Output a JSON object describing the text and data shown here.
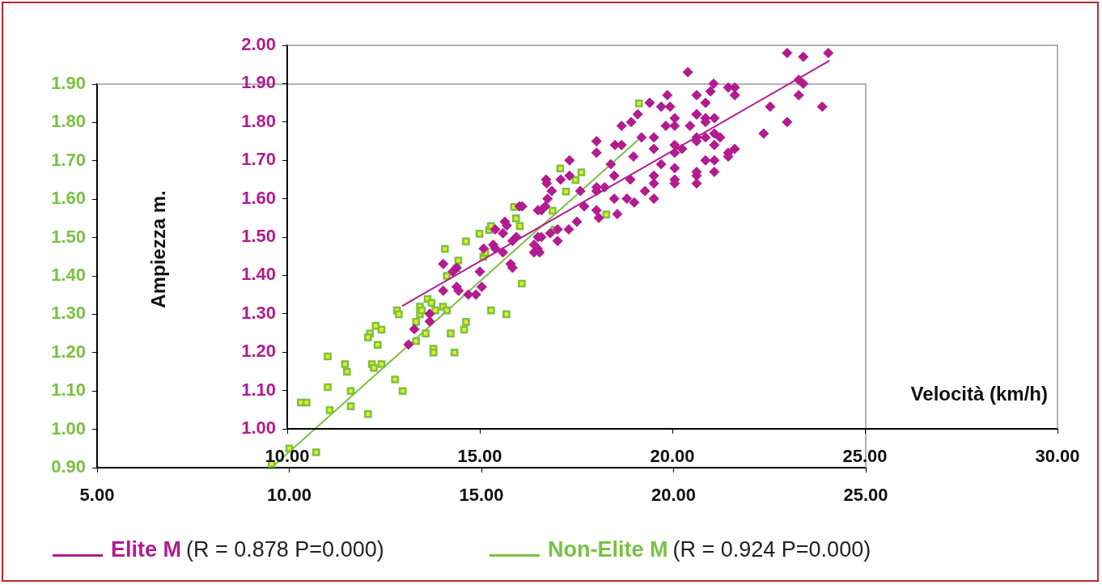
{
  "chart_data": [
    {
      "type": "scatter",
      "xlabel": "Velocità (km/h)",
      "ylabel": "Ampiezza m.",
      "legend": "bottom",
      "grid": false,
      "xlim": [
        10,
        30
      ],
      "xticks": [
        {
          "value": 10,
          "label": "10.00"
        },
        {
          "value": 15,
          "label": "15.00"
        },
        {
          "value": 20,
          "label": "20.00"
        },
        {
          "value": 25,
          "label": "25.00"
        },
        {
          "value": 30,
          "label": "30.00"
        }
      ],
      "ylim": [
        1,
        2
      ],
      "yticks": [
        {
          "value": 1,
          "label": "1.00"
        },
        {
          "value": 1.1,
          "label": "1.10"
        },
        {
          "value": 1.2,
          "label": "1.20"
        },
        {
          "value": 1.3,
          "label": "1.30"
        },
        {
          "value": 1.4,
          "label": "1.40"
        },
        {
          "value": 1.5,
          "label": "1.50"
        },
        {
          "value": 1.6,
          "label": "1.60"
        },
        {
          "value": 1.7,
          "label": "1.70"
        },
        {
          "value": 1.8,
          "label": "1.80"
        },
        {
          "value": 1.9,
          "label": "1.90"
        },
        {
          "value": 2,
          "label": "2.00"
        }
      ],
      "annotations": [
        "(R = 0.878 P=0.000)"
      ],
      "series": [
        {
          "name": "Elite M",
          "color": "#b31b8f",
          "marker": "diamond",
          "x": [
            13.15,
            13.3,
            13.7,
            13.7,
            14.05,
            14.05,
            14.3,
            14.4,
            14.4,
            14.45,
            14.7,
            14.9,
            15.0,
            15.05,
            15.1,
            15.4,
            15.6,
            15.6,
            15.8,
            15.85,
            15.85,
            15.65,
            15.7,
            15.95,
            16.1,
            16.5,
            16.55,
            16.6,
            16.6,
            16.7,
            15.4,
            15.35,
            16.03,
            16.51,
            16.76,
            16.72,
            16.74,
            16.87,
            17.1,
            17.33,
            17.33,
            16.51,
            16.41,
            16.41,
            16.83,
            17.02,
            17.02,
            17.31,
            17.52,
            17.61,
            17.71,
            18.03,
            18.03,
            18.03,
            18.03,
            18.03,
            18.09,
            18.24,
            18.4,
            18.49,
            18.49,
            18.51,
            18.57,
            18.68,
            18.68,
            18.82,
            18.91,
            18.93,
            18.99,
            19.01,
            19.1,
            19.2,
            19.29,
            19.41,
            19.52,
            19.52,
            19.52,
            19.52,
            19.52,
            19.71,
            19.71,
            19.83,
            19.87,
            19.94,
            20.06,
            20.06,
            20.06,
            20.06,
            20.06,
            20.06,
            20.06,
            20.25,
            20.46,
            20.63,
            20.63,
            20.63,
            20.63,
            20.63,
            20.63,
            20.63,
            20.86,
            20.86,
            20.86,
            20.86,
            20.99,
            21.09,
            21.09,
            21.09,
            21.09,
            21.09,
            21.24,
            21.45,
            21.62,
            21.62,
            20.4,
            22.98,
            23.4,
            24.05,
            23.28,
            23.4,
            23.28,
            22.54,
            23.89,
            22.98,
            22.37,
            21.07,
            21.45,
            21.62,
            20.63,
            20.86,
            21.45
          ],
          "values": [
            1.22,
            1.26,
            1.3,
            1.28,
            1.43,
            1.36,
            1.41,
            1.42,
            1.37,
            1.36,
            1.35,
            1.35,
            1.41,
            1.37,
            1.47,
            1.47,
            1.46,
            1.51,
            1.43,
            1.42,
            1.49,
            1.54,
            1.53,
            1.5,
            1.58,
            1.47,
            1.46,
            1.5,
            1.57,
            1.58,
            1.52,
            1.48,
            1.58,
            1.57,
            1.6,
            1.65,
            1.64,
            1.62,
            1.65,
            1.7,
            1.66,
            1.5,
            1.48,
            1.46,
            1.51,
            1.49,
            1.52,
            1.52,
            1.54,
            1.62,
            1.58,
            1.75,
            1.72,
            1.63,
            1.62,
            1.57,
            1.55,
            1.63,
            1.69,
            1.66,
            1.6,
            1.74,
            1.56,
            1.74,
            1.79,
            1.6,
            1.65,
            1.8,
            1.71,
            1.59,
            1.82,
            1.76,
            1.62,
            1.85,
            1.76,
            1.73,
            1.66,
            1.64,
            1.6,
            1.84,
            1.69,
            1.79,
            1.87,
            1.84,
            1.81,
            1.79,
            1.74,
            1.72,
            1.68,
            1.65,
            1.64,
            1.73,
            1.79,
            1.82,
            1.76,
            1.75,
            1.67,
            1.66,
            1.64,
            1.87,
            1.85,
            1.81,
            1.76,
            1.7,
            1.88,
            1.81,
            1.77,
            1.74,
            1.7,
            1.67,
            1.76,
            1.72,
            1.73,
            1.87,
            1.93,
            1.98,
            1.97,
            1.98,
            1.91,
            1.9,
            1.87,
            1.84,
            1.84,
            1.8,
            1.77,
            1.9,
            1.89,
            1.89,
            1.82,
            1.8,
            1.71
          ]
        },
        {
          "type": "line",
          "color": "#b31b8f",
          "marker": "none",
          "x": [
            12.98,
            24.08
          ],
          "values": [
            1.32,
            1.96
          ]
        }
      ]
    },
    {
      "type": "scatter",
      "legend": "bottom",
      "grid": false,
      "xlim": [
        5,
        25
      ],
      "xticks": [
        {
          "value": 5,
          "label": "5.00"
        },
        {
          "value": 10,
          "label": "10.00"
        },
        {
          "value": 15,
          "label": "15.00"
        },
        {
          "value": 20,
          "label": "20.00"
        },
        {
          "value": 25,
          "label": "25.00"
        }
      ],
      "ylim": [
        0.9,
        1.9
      ],
      "yticks": [
        {
          "value": 0.9,
          "label": "0.90"
        },
        {
          "value": 1,
          "label": "1.00"
        },
        {
          "value": 1.1,
          "label": "1.10"
        },
        {
          "value": 1.2,
          "label": "1.20"
        },
        {
          "value": 1.3,
          "label": "1.30"
        },
        {
          "value": 1.4,
          "label": "1.40"
        },
        {
          "value": 1.5,
          "label": "1.50"
        },
        {
          "value": 1.6,
          "label": "1.60"
        },
        {
          "value": 1.7,
          "label": "1.70"
        },
        {
          "value": 1.8,
          "label": "1.80"
        },
        {
          "value": 1.9,
          "label": "1.90"
        }
      ],
      "annotations": [
        "(R = 0.924 P=0.000)"
      ],
      "series": [
        {
          "name": "Non-Elite M",
          "color": "#7ac143",
          "marker": "square",
          "x": [
            9.54,
            10.0,
            10.3,
            10.45,
            10.7,
            11.0,
            11.0,
            11.05,
            11.45,
            11.5,
            11.6,
            11.6,
            12.05,
            12.1,
            12.05,
            12.15,
            12.2,
            12.25,
            12.3,
            12.4,
            12.4,
            12.75,
            12.8,
            12.85,
            12.95,
            13.3,
            13.3,
            13.4,
            13.4,
            13.55,
            13.6,
            13.7,
            13.75,
            13.75,
            13.8,
            14.0,
            14.1,
            14.1,
            14.2,
            14.3,
            14.35,
            14.4,
            14.55,
            14.6,
            14.6,
            14.95,
            15.05,
            15.2,
            15.25,
            15.25,
            15.65,
            15.85,
            15.9,
            16.0,
            16.05,
            16.85,
            16.9,
            17.05,
            17.2,
            17.45,
            17.6,
            18.25,
            19.1,
            14.05,
            15.1,
            13.45
          ],
          "values": [
            0.91,
            0.95,
            1.07,
            1.07,
            0.94,
            1.19,
            1.11,
            1.05,
            1.17,
            1.15,
            1.1,
            1.06,
            1.04,
            1.25,
            1.24,
            1.17,
            1.16,
            1.27,
            1.22,
            1.26,
            1.17,
            1.13,
            1.31,
            1.3,
            1.1,
            1.23,
            1.28,
            1.3,
            1.32,
            1.25,
            1.34,
            1.33,
            1.21,
            1.2,
            1.31,
            1.32,
            1.31,
            1.4,
            1.25,
            1.2,
            1.42,
            1.44,
            1.26,
            1.28,
            1.49,
            1.51,
            1.45,
            1.52,
            1.31,
            1.53,
            1.3,
            1.58,
            1.55,
            1.53,
            1.38,
            1.57,
            1.52,
            1.68,
            1.62,
            1.65,
            1.67,
            1.56,
            1.85,
            1.47,
            1.46,
            1.31
          ]
        },
        {
          "type": "line",
          "color": "#7ac143",
          "marker": "none",
          "x": [
            9.54,
            19.08
          ],
          "values": [
            0.9,
            1.755
          ]
        }
      ]
    }
  ]
}
